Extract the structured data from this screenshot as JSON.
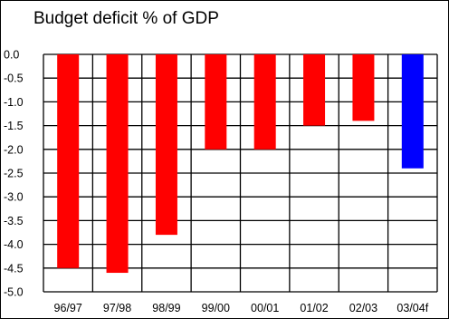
{
  "chart_data": {
    "type": "bar",
    "title": "Budget deficit % of GDP",
    "xlabel": "",
    "ylabel": "",
    "categories": [
      "96/97",
      "97/98",
      "98/99",
      "99/00",
      "00/01",
      "01/02",
      "02/03",
      "03/04f"
    ],
    "values": [
      -4.5,
      -4.6,
      -3.8,
      -2.0,
      -2.0,
      -1.5,
      -1.4,
      -2.4
    ],
    "bar_colors": [
      "#ff0000",
      "#ff0000",
      "#ff0000",
      "#ff0000",
      "#ff0000",
      "#ff0000",
      "#ff0000",
      "#0000ff"
    ],
    "ylim": [
      -5.0,
      0.0
    ],
    "yticks": [
      "0.0",
      "-0.5",
      "-1.0",
      "-1.5",
      "-2.0",
      "-2.5",
      "-3.0",
      "-3.5",
      "-4.0",
      "-4.5",
      "-5.0"
    ],
    "ytick_values": [
      0.0,
      -0.5,
      -1.0,
      -1.5,
      -2.0,
      -2.5,
      -3.0,
      -3.5,
      -4.0,
      -4.5,
      -5.0
    ],
    "grid": true,
    "legend": "none"
  }
}
